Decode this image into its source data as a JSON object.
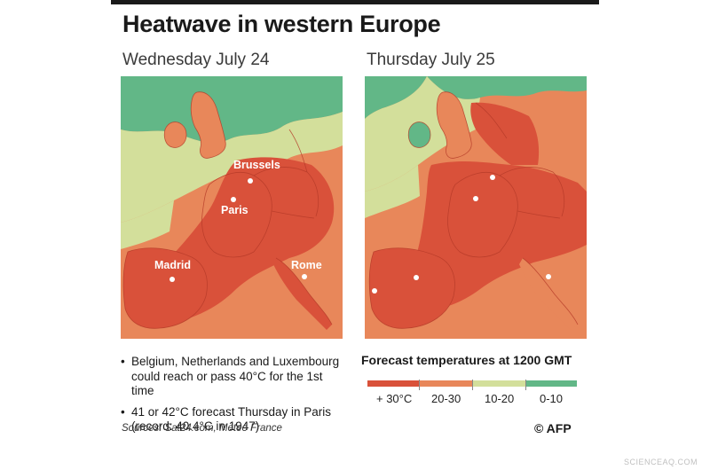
{
  "title": "Heatwave in western Europe",
  "maps": [
    {
      "date": "Wednesday July 24",
      "cities": [
        "Brussels",
        "Paris",
        "Madrid",
        "Rome"
      ]
    },
    {
      "date": "Thursday July 25"
    }
  ],
  "bullets": [
    {
      "text": "Belgium, Netherlands and Luxembourg could reach or pass 40°C for the 1st time"
    },
    {
      "text": "41 or 42°C forecast Thursday in Paris (record: 40.4°C in 1947)"
    }
  ],
  "legend": {
    "title": "Forecast temperatures at 1200 GMT",
    "items": [
      {
        "label": "+ 30°C",
        "color": "#d9513a"
      },
      {
        "label": "20-30",
        "color": "#e8875a"
      },
      {
        "label": "10-20",
        "color": "#d3df9b"
      },
      {
        "label": "0-10",
        "color": "#62b787"
      }
    ]
  },
  "sources": "Sources: Sat24.com, Meteo France",
  "credit": "© AFP",
  "watermark": "SCIENCEAQ.COM",
  "colors": {
    "hot": "#d9513a",
    "warm": "#e8875a",
    "mild": "#d3df9b",
    "cool": "#62b787",
    "border": "#b53a28"
  }
}
